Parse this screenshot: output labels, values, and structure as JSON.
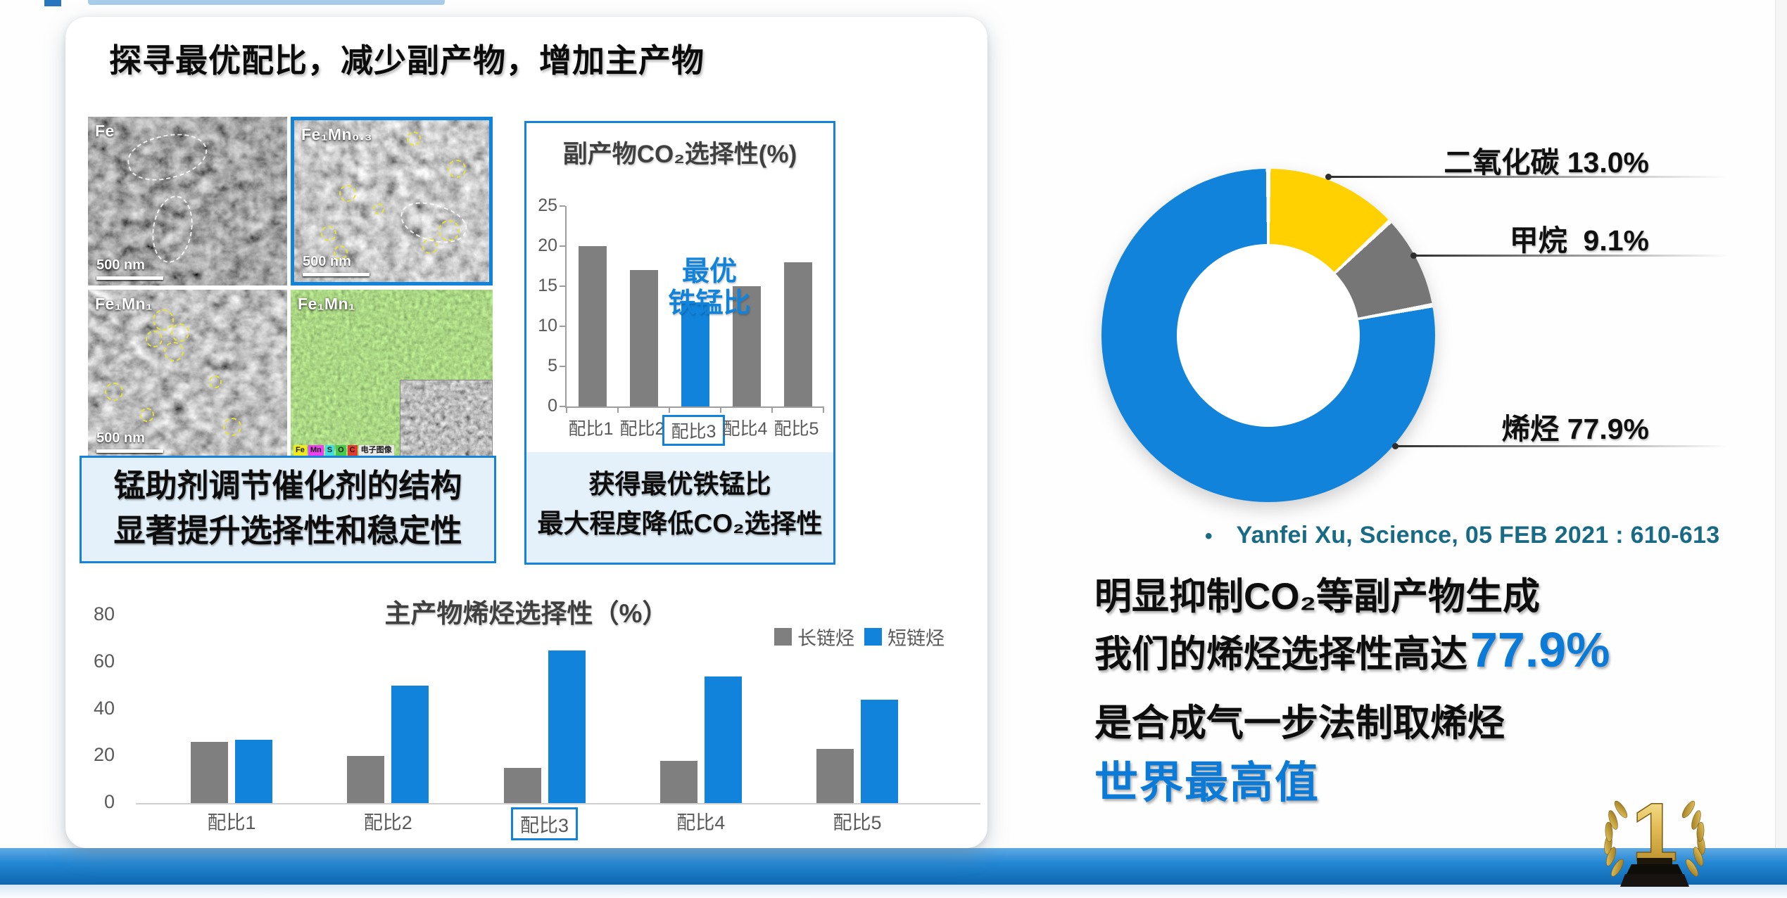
{
  "colors": {
    "accent_blue": "#1283DA",
    "bar_gray": "#7F7F7F",
    "box_border": "#1583D9",
    "box_fill": "#E4F1FA",
    "donut_yellow": "#FFD100",
    "donut_gray": "#767676",
    "donut_blue": "#1283DA",
    "citation_teal": "#186A85",
    "highlight_blue": "#0B7BD7",
    "axis_text": "#595959",
    "chart_title_gray": "#404040"
  },
  "header": {
    "title": "探寻最优配比，减少副产物，增加主产物"
  },
  "sem_panel": {
    "images": [
      {
        "label": "Fe",
        "scale_bar": "500 nm"
      },
      {
        "label": "Fe₁Mn₀.₃",
        "scale_bar": "500 nm"
      },
      {
        "label": "Fe₁Mn₁",
        "scale_bar": "500 nm"
      },
      {
        "label": "Fe₁Mn₁"
      }
    ],
    "eds_chips": [
      {
        "text": "Fe",
        "color": "#F2EA1B"
      },
      {
        "text": "Mn",
        "color": "#EE3FF0"
      },
      {
        "text": "S",
        "color": "#3BE0E0"
      },
      {
        "text": "O",
        "color": "#49C949"
      },
      {
        "text": "C",
        "color": "#E23B2E"
      },
      {
        "text": "电子图像",
        "color": "#E8E8E8"
      }
    ]
  },
  "conclusions": {
    "left_line1": "锰助剂调节催化剂的结构",
    "left_line2": "显著提升选择性和稳定性",
    "right_line1": "获得最优铁锰比",
    "right_line2": "最大程度降低CO₂选择性"
  },
  "citation": {
    "bullet": "•",
    "text": "Yanfei Xu, Science, 05 FEB 2021 : 610-613"
  },
  "summary": {
    "line1": "明显抑制CO₂等副产物生成",
    "line2_prefix": "我们的烯烃选择性高达",
    "line2_value": "77.9%",
    "line3": "是合成气一步法制取烯烃",
    "line4": "世界最高值"
  },
  "trophy": {
    "number": "1"
  },
  "chart_data": [
    {
      "id": "co2-selectivity",
      "type": "bar",
      "title": "副产物CO₂选择性(%)",
      "categories": [
        "配比1",
        "配比2",
        "配比3",
        "配比4",
        "配比5"
      ],
      "values": [
        20,
        17,
        13,
        15,
        18
      ],
      "highlight_index": 2,
      "annotation": [
        "最优",
        "铁锰比"
      ],
      "boxed_category_index": 2,
      "ylim": [
        0,
        25
      ],
      "yticks": [
        0,
        5,
        10,
        15,
        20,
        25
      ],
      "grid": false,
      "legend_position": "none"
    },
    {
      "id": "olefin-selectivity",
      "type": "bar",
      "title": "主产物烯烃选择性（%）",
      "categories": [
        "配比1",
        "配比2",
        "配比3",
        "配比4",
        "配比5"
      ],
      "series": [
        {
          "name": "长链烃",
          "color_key": "bar_gray",
          "values": [
            26,
            20,
            15,
            18,
            23
          ]
        },
        {
          "name": "短链烃",
          "color_key": "accent_blue",
          "values": [
            27,
            50,
            65,
            54,
            44
          ]
        }
      ],
      "boxed_category_index": 2,
      "ylim": [
        0,
        80
      ],
      "yticks": [
        0,
        20,
        40,
        60,
        80
      ],
      "grid": false,
      "legend_position": "top-right"
    },
    {
      "id": "product-distribution",
      "type": "pie",
      "donut": true,
      "start_angle_deg": 0,
      "direction": "clockwise",
      "slices": [
        {
          "label": "二氧化碳",
          "value": 13.0,
          "display": "二氧化碳 13.0%",
          "color": "#FFD100"
        },
        {
          "label": "甲烷",
          "value": 9.1,
          "display": "甲烷  9.1%",
          "color": "#767676"
        },
        {
          "label": "烯烃",
          "value": 77.9,
          "display": "烯烃 77.9%",
          "color": "#1283DA"
        }
      ]
    }
  ]
}
